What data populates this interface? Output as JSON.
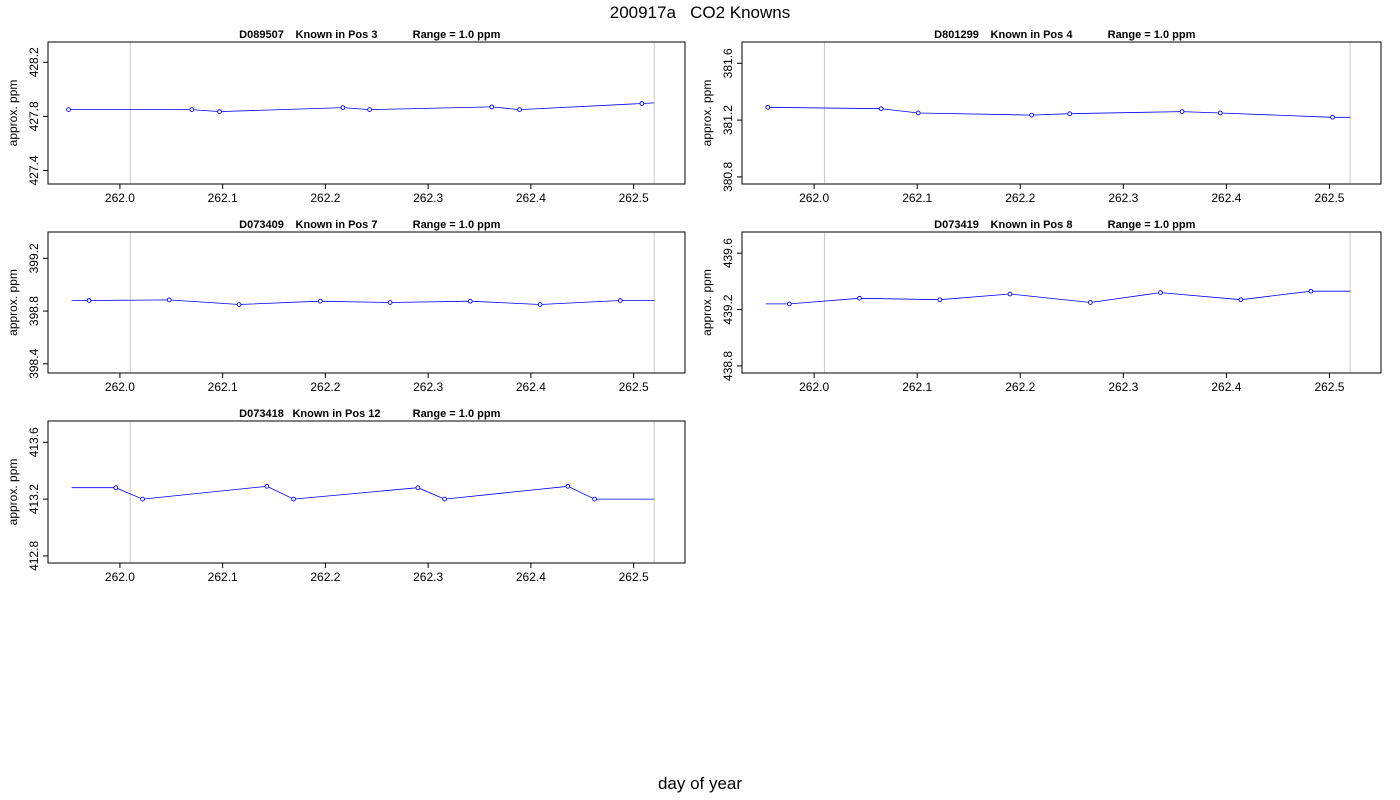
{
  "figure": {
    "title": "200917a   CO2 Knowns",
    "xlabel": "day of year"
  },
  "chart_data": [
    {
      "type": "line",
      "panel_title": {
        "id": "D089507",
        "position": "Known in Pos 3",
        "range": "Range = 1.0 ppm"
      },
      "ylabel": "approx. ppm",
      "xlim": [
        261.93,
        262.55
      ],
      "ylim": [
        427.3,
        428.35
      ],
      "xticks": [
        "262.0",
        "262.1",
        "262.2",
        "262.3",
        "262.4",
        "262.5"
      ],
      "yticks": [
        "427.4",
        "427.8",
        "428.2"
      ],
      "vlines": [
        262.01,
        262.52
      ],
      "line": {
        "x": [
          261.953,
          262.52
        ],
        "y": [
          427.85,
          427.9
        ]
      },
      "points": {
        "x": [
          261.95,
          262.07,
          262.097,
          262.217,
          262.243,
          262.362,
          262.389,
          262.508
        ],
        "y": [
          427.85,
          427.85,
          427.835,
          427.865,
          427.85,
          427.87,
          427.85,
          427.895
        ]
      }
    },
    {
      "type": "line",
      "panel_title": {
        "id": "D801299",
        "position": "Known in Pos 4",
        "range": "Range = 1.0 ppm"
      },
      "ylabel": "approx. ppm",
      "xlim": [
        261.93,
        262.55
      ],
      "ylim": [
        380.75,
        381.75
      ],
      "xticks": [
        "262.0",
        "262.1",
        "262.2",
        "262.3",
        "262.4",
        "262.5"
      ],
      "yticks": [
        "380.8",
        "381.2",
        "381.6"
      ],
      "vlines": [
        262.01,
        262.52
      ],
      "line": {
        "x": [
          261.953,
          262.52
        ],
        "y": [
          381.29,
          381.22
        ]
      },
      "points": {
        "x": [
          261.955,
          262.065,
          262.101,
          262.211,
          262.248,
          262.357,
          262.394,
          262.503
        ],
        "y": [
          381.29,
          381.28,
          381.25,
          381.235,
          381.245,
          381.26,
          381.25,
          381.22
        ]
      }
    },
    {
      "type": "line",
      "panel_title": {
        "id": "D073409",
        "position": "Known in Pos 7",
        "range": "Range = 1.0 ppm"
      },
      "ylabel": "approx. ppm",
      "xlim": [
        261.93,
        262.55
      ],
      "ylim": [
        398.33,
        399.4
      ],
      "xticks": [
        "262.0",
        "262.1",
        "262.2",
        "262.3",
        "262.4",
        "262.5"
      ],
      "yticks": [
        "398.4",
        "398.8",
        "399.2"
      ],
      "vlines": [
        262.01,
        262.52
      ],
      "line": {
        "x": [
          261.953,
          262.52
        ],
        "y": [
          398.88,
          398.88
        ]
      },
      "points": {
        "x": [
          261.97,
          262.048,
          262.116,
          262.195,
          262.263,
          262.341,
          262.409,
          262.487
        ],
        "y": [
          398.88,
          398.885,
          398.85,
          398.875,
          398.865,
          398.875,
          398.85,
          398.88
        ]
      }
    },
    {
      "type": "line",
      "panel_title": {
        "id": "D073419",
        "position": "Known in Pos 8",
        "range": "Range = 1.0 ppm"
      },
      "ylabel": "approx. ppm",
      "xlim": [
        261.93,
        262.55
      ],
      "ylim": [
        438.75,
        439.75
      ],
      "xticks": [
        "262.0",
        "262.1",
        "262.2",
        "262.3",
        "262.4",
        "262.5"
      ],
      "yticks": [
        "438.8",
        "439.2",
        "439.6"
      ],
      "vlines": [
        262.01,
        262.52
      ],
      "line": {
        "x": [
          261.953,
          262.52
        ],
        "y": [
          439.24,
          439.33
        ]
      },
      "points": {
        "x": [
          261.976,
          262.044,
          262.122,
          262.19,
          262.268,
          262.336,
          262.414,
          262.482
        ],
        "y": [
          439.24,
          439.28,
          439.27,
          439.31,
          439.25,
          439.32,
          439.27,
          439.33
        ]
      }
    },
    {
      "type": "line",
      "panel_title": {
        "id": "D073418",
        "position": "Known in Pos 12",
        "range": "Range = 1.0 ppm"
      },
      "ylabel": "approx. ppm",
      "xlim": [
        261.93,
        262.55
      ],
      "ylim": [
        412.75,
        413.75
      ],
      "xticks": [
        "262.0",
        "262.1",
        "262.2",
        "262.3",
        "262.4",
        "262.5"
      ],
      "yticks": [
        "412.8",
        "413.2",
        "413.6"
      ],
      "vlines": [
        262.01,
        262.52
      ],
      "line": {
        "x": [
          261.953,
          262.52
        ],
        "y": [
          413.28,
          413.2
        ]
      },
      "points": {
        "x": [
          261.996,
          262.022,
          262.143,
          262.169,
          262.29,
          262.316,
          262.436,
          262.462
        ],
        "y": [
          413.28,
          413.2,
          413.29,
          413.2,
          413.28,
          413.2,
          413.29,
          413.2
        ]
      }
    }
  ]
}
